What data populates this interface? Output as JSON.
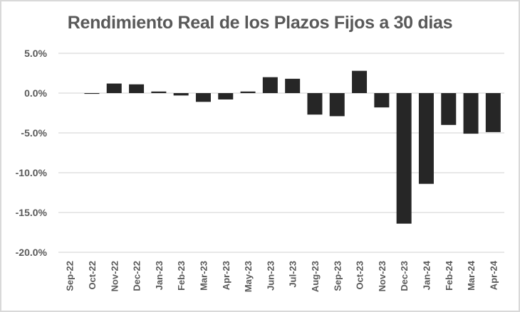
{
  "chart_data": {
    "type": "bar",
    "title": "Rendimiento Real de los Plazos Fijos a 30 dias",
    "xlabel": "",
    "ylabel": "",
    "ylim": [
      -20.0,
      5.0
    ],
    "yticks": [
      "5.0%",
      "0.0%",
      "-5.0%",
      "-10.0%",
      "-15.0%",
      "-20.0%"
    ],
    "ytick_values": [
      5,
      0,
      -5,
      -10,
      -15,
      -20
    ],
    "grid": true,
    "legend": null,
    "bar_color": "#262626",
    "categories": [
      "Sep-22",
      "Oct-22",
      "Nov-22",
      "Dec-22",
      "Jan-23",
      "Feb-23",
      "Mar-23",
      "Apr-23",
      "May-23",
      "Jun-23",
      "Jul-23",
      "Aug-23",
      "Sep-23",
      "Oct-23",
      "Nov-23",
      "Dec-23",
      "Jan-24",
      "Feb-24",
      "Mar-24",
      "Apr-24"
    ],
    "values": [
      0.0,
      -0.1,
      1.2,
      1.1,
      0.2,
      -0.3,
      -1.1,
      -0.8,
      0.2,
      2.0,
      1.8,
      -2.7,
      -2.9,
      2.8,
      -1.8,
      -16.4,
      -11.4,
      -4.0,
      -5.1,
      -4.9
    ],
    "unit": "%"
  }
}
